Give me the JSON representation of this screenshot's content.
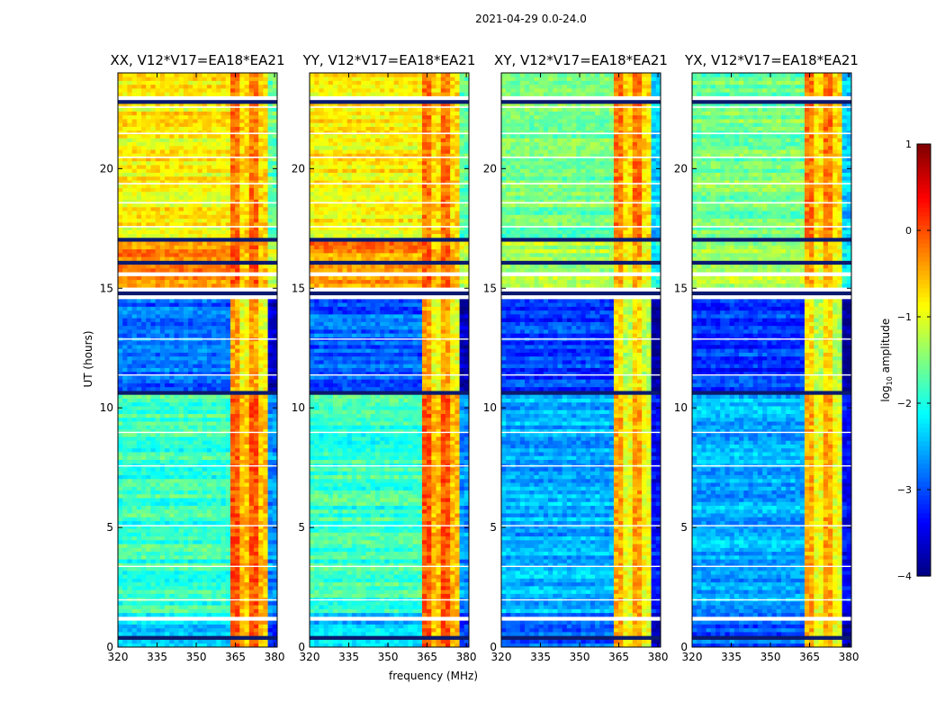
{
  "figure_title": "2021-04-29 0.0-24.0",
  "chart_data": {
    "type": "heatmap",
    "panels": [
      {
        "title": "XX, V12*V17=EA18*EA21",
        "pol": "XX"
      },
      {
        "title": "YY, V12*V17=EA18*EA21",
        "pol": "YY"
      },
      {
        "title": "XY, V12*V17=EA18*EA21",
        "pol": "XY"
      },
      {
        "title": "YX, V12*V17=EA18*EA21",
        "pol": "YX"
      }
    ],
    "xlabel": "frequency (MHz)",
    "ylabel": "UT (hours)",
    "xlim": [
      320,
      381
    ],
    "ylim": [
      0,
      24
    ],
    "xticks": [
      320,
      335,
      350,
      365,
      380
    ],
    "yticks": [
      0,
      5,
      10,
      15,
      20
    ],
    "colorbar": {
      "label": "log$_{10}$ amplitude",
      "label_main": "log",
      "label_sub": "10",
      "label_rest": " amplitude",
      "range": [
        -4,
        1
      ],
      "ticks": [
        "1",
        "0",
        "−1",
        "−2",
        "−3",
        "−4"
      ],
      "colormap": "jet"
    },
    "signal_band_mhz": [
      363.5,
      377.5
    ],
    "flagged_bands_utc": [
      [
        0.35,
        0.55
      ],
      [
        1.05,
        1.35
      ],
      [
        10.55,
        10.7
      ],
      [
        14.5,
        15.0
      ],
      [
        15.55,
        15.7
      ],
      [
        16.0,
        16.15
      ],
      [
        16.95,
        17.15
      ],
      [
        22.75,
        23.1
      ]
    ]
  }
}
